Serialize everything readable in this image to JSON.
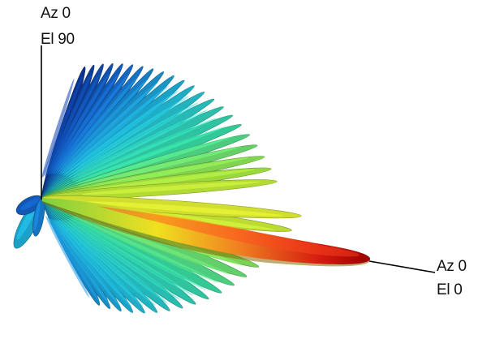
{
  "labels": {
    "top_azimuth": "Az 0",
    "top_elevation": "El 90",
    "right_azimuth": "Az 0",
    "right_elevation": "El 0"
  },
  "colors": {
    "axis": "#000000",
    "peak": "#b10000",
    "low": "#00a8d8",
    "deep": "#0a3a8a"
  }
}
